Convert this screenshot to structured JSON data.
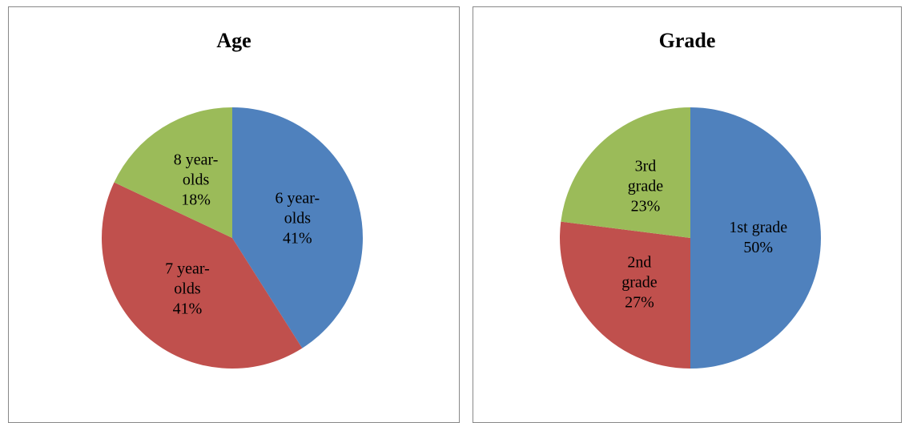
{
  "chart_data": [
    {
      "type": "pie",
      "title": "Age",
      "categories": [
        "6 year-olds",
        "7 year-olds",
        "8 year-olds"
      ],
      "values": [
        41,
        41,
        18
      ],
      "value_labels": [
        "41%",
        "41%",
        "18%"
      ],
      "colors": [
        "#4f81bd",
        "#c0504d",
        "#9bbb59"
      ]
    },
    {
      "type": "pie",
      "title": "Grade",
      "categories": [
        "1st grade",
        "2nd grade",
        "3rd grade"
      ],
      "values": [
        50,
        27,
        23
      ],
      "value_labels": [
        "50%",
        "27%",
        "23%"
      ],
      "colors": [
        "#4f81bd",
        "#c0504d",
        "#9bbb59"
      ]
    }
  ]
}
